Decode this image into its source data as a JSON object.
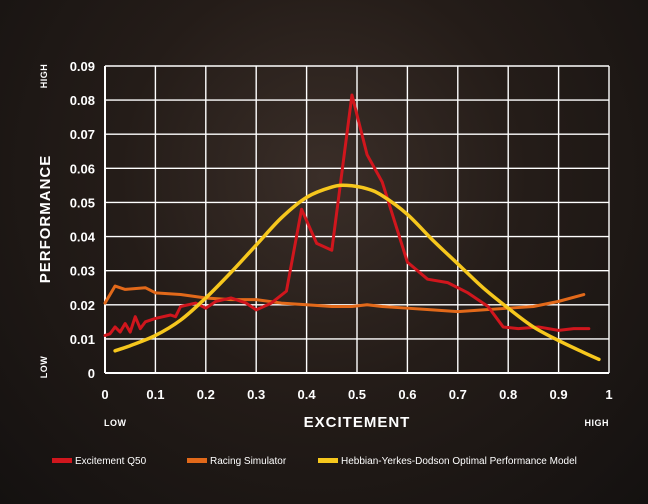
{
  "chart_data": {
    "type": "line",
    "xlabel": "EXCITEMENT",
    "ylabel": "PERFORMANCE",
    "x_low_label": "LOW",
    "x_high_label": "HIGH",
    "y_low_label": "LOW",
    "y_high_label": "HIGH",
    "xlim": [
      0,
      1
    ],
    "ylim": [
      0,
      0.09
    ],
    "x_ticks": [
      "0",
      "0.1",
      "0.2",
      "0.3",
      "0.4",
      "0.5",
      "0.6",
      "0.7",
      "0.8",
      "0.9",
      "1"
    ],
    "y_ticks": [
      "0",
      "0.01",
      "0.02",
      "0.03",
      "0.04",
      "0.05",
      "0.06",
      "0.07",
      "0.08",
      "0.09"
    ],
    "grid": true,
    "legend_position": "bottom",
    "series": [
      {
        "name": "Excitement Q50",
        "color": "#d0161d",
        "points": [
          [
            0.0,
            0.011
          ],
          [
            0.01,
            0.0115
          ],
          [
            0.02,
            0.0135
          ],
          [
            0.03,
            0.012
          ],
          [
            0.04,
            0.0145
          ],
          [
            0.05,
            0.012
          ],
          [
            0.06,
            0.0165
          ],
          [
            0.07,
            0.013
          ],
          [
            0.08,
            0.015
          ],
          [
            0.1,
            0.016
          ],
          [
            0.13,
            0.017
          ],
          [
            0.14,
            0.0165
          ],
          [
            0.15,
            0.0195
          ],
          [
            0.18,
            0.0205
          ],
          [
            0.2,
            0.019
          ],
          [
            0.22,
            0.021
          ],
          [
            0.25,
            0.022
          ],
          [
            0.28,
            0.0205
          ],
          [
            0.3,
            0.0185
          ],
          [
            0.33,
            0.0205
          ],
          [
            0.36,
            0.024
          ],
          [
            0.39,
            0.048
          ],
          [
            0.42,
            0.038
          ],
          [
            0.45,
            0.036
          ],
          [
            0.49,
            0.0815
          ],
          [
            0.52,
            0.064
          ],
          [
            0.55,
            0.056
          ],
          [
            0.6,
            0.0325
          ],
          [
            0.64,
            0.0275
          ],
          [
            0.68,
            0.0265
          ],
          [
            0.72,
            0.0235
          ],
          [
            0.76,
            0.0195
          ],
          [
            0.79,
            0.0135
          ],
          [
            0.82,
            0.013
          ],
          [
            0.86,
            0.0135
          ],
          [
            0.9,
            0.0125
          ],
          [
            0.93,
            0.013
          ],
          [
            0.96,
            0.013
          ]
        ]
      },
      {
        "name": "Racing Simulator",
        "color": "#e2691a",
        "points": [
          [
            0.0,
            0.0205
          ],
          [
            0.02,
            0.0255
          ],
          [
            0.04,
            0.0245
          ],
          [
            0.08,
            0.025
          ],
          [
            0.1,
            0.0235
          ],
          [
            0.15,
            0.023
          ],
          [
            0.2,
            0.022
          ],
          [
            0.25,
            0.0215
          ],
          [
            0.3,
            0.0215
          ],
          [
            0.35,
            0.0205
          ],
          [
            0.4,
            0.02
          ],
          [
            0.45,
            0.0195
          ],
          [
            0.49,
            0.0195
          ],
          [
            0.52,
            0.02
          ],
          [
            0.55,
            0.0195
          ],
          [
            0.6,
            0.019
          ],
          [
            0.65,
            0.0185
          ],
          [
            0.7,
            0.018
          ],
          [
            0.75,
            0.0185
          ],
          [
            0.8,
            0.019
          ],
          [
            0.85,
            0.0195
          ],
          [
            0.9,
            0.021
          ],
          [
            0.95,
            0.023
          ]
        ]
      },
      {
        "name": "Hebbian-Yerkes-Dodson Optimal Performance Model",
        "color": "#f6c71d",
        "points": [
          [
            0.02,
            0.0065
          ],
          [
            0.05,
            0.008
          ],
          [
            0.1,
            0.011
          ],
          [
            0.15,
            0.0155
          ],
          [
            0.2,
            0.022
          ],
          [
            0.25,
            0.0295
          ],
          [
            0.3,
            0.0375
          ],
          [
            0.35,
            0.0455
          ],
          [
            0.4,
            0.0515
          ],
          [
            0.45,
            0.0545
          ],
          [
            0.48,
            0.055
          ],
          [
            0.52,
            0.054
          ],
          [
            0.55,
            0.052
          ],
          [
            0.6,
            0.0465
          ],
          [
            0.65,
            0.039
          ],
          [
            0.7,
            0.032
          ],
          [
            0.75,
            0.025
          ],
          [
            0.8,
            0.019
          ],
          [
            0.85,
            0.0135
          ],
          [
            0.9,
            0.0095
          ],
          [
            0.95,
            0.006
          ],
          [
            0.98,
            0.004
          ]
        ]
      }
    ]
  }
}
